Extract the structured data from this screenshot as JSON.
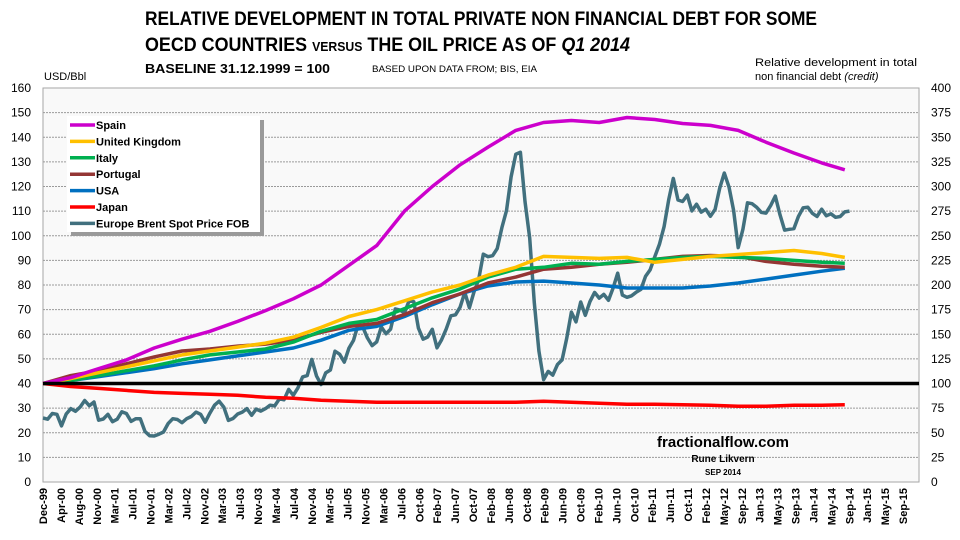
{
  "chart_data": {
    "type": "line",
    "title": {
      "line1": "RELATIVE DEVELOPMENT IN TOTAL PRIVATE NON FINANCIAL DEBT FOR SOME",
      "line2_a": "OECD COUNTRIES ",
      "line2_b": "VERSUS",
      "line2_c": " THE OIL PRICE AS OF ",
      "line2_d": "Q1 2014"
    },
    "subtitle": "BASELINE 31.12.1999 = 100",
    "source": "BASED UPON DATA FROM; BIS, EIA",
    "ylabel_left": "USD/Bbl",
    "ylabel_right_line1": "Relative development in total",
    "ylabel_right_line2": "non financial debt ",
    "ylabel_right_line2_italic": "(credit)",
    "ylim_left": [
      0,
      160
    ],
    "ylim_right": [
      0,
      400
    ],
    "yticks_left": [
      "0",
      "10",
      "20",
      "30",
      "40",
      "50",
      "60",
      "70",
      "80",
      "90",
      "100",
      "110",
      "120",
      "130",
      "140",
      "150",
      "160"
    ],
    "yticks_right": [
      "0",
      "25",
      "50",
      "75",
      "100",
      "125",
      "150",
      "175",
      "200",
      "225",
      "250",
      "275",
      "300",
      "325",
      "350",
      "375",
      "400"
    ],
    "xticks": [
      "Dec-99",
      "Apr-00",
      "Aug-00",
      "Nov-00",
      "Mar-01",
      "Jul-01",
      "Nov-01",
      "Mar-02",
      "Jul-02",
      "Nov-02",
      "Mar-03",
      "Jul-03",
      "Nov-03",
      "Mar-04",
      "Jul-04",
      "Nov-04",
      "Mar-05",
      "Jul-05",
      "Nov-05",
      "Mar-06",
      "Jul-06",
      "Oct-06",
      "Feb-07",
      "Jun-07",
      "Oct-07",
      "Feb-08",
      "Jun-08",
      "Oct-08",
      "Feb-09",
      "Jun-09",
      "Oct-09",
      "Feb-10",
      "Jun-10",
      "Oct-10",
      "Feb-11",
      "Jun-11",
      "Oct-11",
      "Feb-12",
      "May-12",
      "Sep-12",
      "Jan-13",
      "May-13",
      "Sep-13",
      "Jan-14",
      "May-14",
      "Sep-14",
      "Jan-15",
      "May-15",
      "Sep-15"
    ],
    "x_range": [
      "1999-12",
      "2015-09"
    ],
    "grid": true,
    "baseline_index": 100,
    "legend_position": "top-left",
    "debt_dates": [
      "1999-12",
      "2000-06",
      "2000-12",
      "2001-06",
      "2001-12",
      "2002-06",
      "2002-12",
      "2003-06",
      "2003-12",
      "2004-06",
      "2004-12",
      "2005-06",
      "2005-12",
      "2006-06",
      "2006-12",
      "2007-06",
      "2007-12",
      "2008-06",
      "2008-12",
      "2009-06",
      "2009-12",
      "2010-06",
      "2010-12",
      "2011-06",
      "2011-12",
      "2012-06",
      "2012-12",
      "2013-06",
      "2013-12",
      "2014-05"
    ],
    "debt_series": [
      {
        "name": "Spain",
        "color": "#cc00cc",
        "values": [
          100,
          106,
          115,
          124,
          136,
          145,
          153,
          163,
          174,
          186,
          200,
          220,
          240,
          275,
          300,
          322,
          340,
          357,
          365,
          367,
          365,
          370,
          368,
          364,
          362,
          357,
          345,
          334,
          324,
          317
        ]
      },
      {
        "name": "United Kingdom",
        "color": "#ffc000",
        "values": [
          100,
          105,
          111,
          117,
          123,
          129,
          133,
          137,
          141,
          147,
          157,
          168,
          175,
          184,
          193,
          200,
          210,
          218,
          229,
          228,
          227,
          228,
          223,
          226,
          229,
          231,
          233,
          235,
          232,
          228
        ]
      },
      {
        "name": "Italy",
        "color": "#00b050",
        "values": [
          100,
          103,
          108,
          113,
          118,
          124,
          129,
          132,
          135,
          142,
          153,
          161,
          165,
          176,
          187,
          196,
          208,
          216,
          218,
          222,
          221,
          224,
          226,
          228,
          229,
          228,
          227,
          225,
          223,
          222
        ]
      },
      {
        "name": "Portugal",
        "color": "#943634",
        "values": [
          100,
          108,
          113,
          120,
          127,
          133,
          135,
          138,
          140,
          144,
          152,
          158,
          161,
          170,
          182,
          191,
          202,
          208,
          216,
          218,
          221,
          223,
          226,
          229,
          230,
          229,
          224,
          221,
          219,
          218
        ]
      },
      {
        "name": "USA",
        "color": "#0070c0",
        "values": [
          100,
          103,
          107,
          111,
          115,
          120,
          124,
          128,
          132,
          136,
          144,
          154,
          158,
          168,
          180,
          191,
          199,
          203,
          204,
          202,
          200,
          197,
          197,
          197,
          199,
          202,
          206,
          210,
          214,
          217
        ]
      },
      {
        "name": "Japan",
        "color": "#ff0000",
        "values": [
          100,
          97,
          95,
          93,
          91,
          90,
          89,
          88,
          86,
          85,
          83,
          82,
          81,
          81,
          81,
          81,
          81,
          81,
          82,
          81,
          80,
          79,
          79,
          78.5,
          78,
          77,
          77,
          78,
          78,
          78.5
        ]
      }
    ],
    "oil_series": {
      "name": "Europe Brent Spot Price FOB",
      "color": "#41707e",
      "start": "1999-12",
      "step_months": 1,
      "values": [
        26.0,
        25.5,
        27.8,
        27.5,
        22.8,
        27.6,
        29.8,
        28.7,
        30.4,
        33.1,
        31.0,
        32.5,
        25.1,
        25.6,
        27.5,
        24.5,
        25.5,
        28.5,
        27.8,
        24.6,
        25.7,
        25.7,
        20.5,
        18.8,
        18.7,
        19.4,
        20.3,
        23.7,
        25.7,
        25.4,
        24.1,
        25.7,
        26.6,
        28.4,
        27.5,
        24.3,
        28.0,
        31.2,
        32.8,
        30.4,
        25.0,
        25.8,
        27.6,
        28.4,
        29.8,
        27.1,
        29.6,
        28.8,
        29.8,
        31.2,
        30.9,
        33.8,
        33.4,
        37.6,
        35.2,
        38.2,
        42.7,
        43.2,
        49.8,
        43.1,
        39.6,
        44.3,
        45.5,
        53.1,
        51.9,
        48.7,
        54.3,
        57.5,
        64.0,
        62.9,
        58.5,
        55.4,
        56.9,
        63.0,
        60.2,
        62.1,
        70.3,
        69.8,
        68.7,
        73.7,
        73.2,
        62.5,
        58.0,
        58.9,
        62.0,
        54.5,
        57.8,
        62.1,
        67.5,
        67.9,
        71.0,
        77.0,
        70.8,
        77.2,
        82.3,
        92.5,
        91.5,
        91.9,
        94.8,
        103.3,
        110.2,
        123.9,
        133.1,
        133.9,
        113.9,
        99.1,
        72.8,
        53.2,
        41.6,
        44.9,
        43.4,
        47.7,
        49.6,
        58.3,
        69.0,
        65.0,
        73.1,
        67.7,
        73.2,
        77.0,
        74.7,
        76.2,
        73.8,
        78.8,
        84.8,
        75.9,
        75.0,
        75.6,
        77.1,
        78.2,
        83.5,
        86.2,
        91.5,
        96.5,
        103.7,
        114.6,
        123.3,
        114.5,
        113.9,
        116.5,
        110.1,
        112.8,
        109.6,
        110.8,
        107.9,
        110.7,
        119.3,
        125.5,
        119.8,
        110.3,
        95.2,
        102.6,
        113.4,
        113.0,
        111.5,
        109.5,
        109.2,
        112.3,
        116.1,
        108.5,
        102.3,
        102.6,
        102.9,
        107.9,
        111.3,
        111.6,
        109.1,
        107.8,
        110.8,
        108.1,
        108.9,
        107.5,
        107.8,
        109.7,
        110.0
      ]
    },
    "legend": [
      "Spain",
      "United Kingdom",
      "Italy",
      "Portugal",
      "USA",
      "Japan",
      "Europe Brent Spot Price FOB"
    ],
    "watermark": {
      "site": "fractionalflow.com",
      "author": "Rune Likvern",
      "date": "SEP 2014"
    }
  }
}
